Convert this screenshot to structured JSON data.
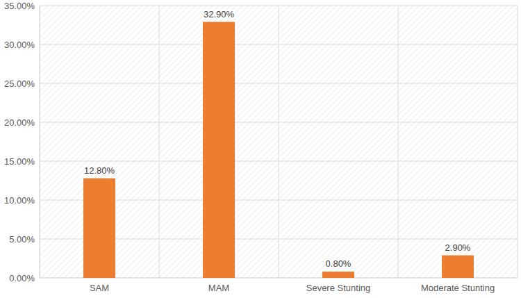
{
  "chart_data": {
    "type": "bar",
    "categories": [
      "SAM",
      "MAM",
      "Severe Stunting",
      "Moderate Stunting"
    ],
    "values": [
      12.8,
      32.9,
      0.8,
      2.9
    ],
    "value_labels": [
      "12.80%",
      "32.90%",
      "0.80%",
      "2.90%"
    ],
    "color": "#ed7d31",
    "ylim": [
      0,
      35
    ],
    "yticks": [
      {
        "value": 0,
        "label": "0.00%"
      },
      {
        "value": 5,
        "label": "5.00%"
      },
      {
        "value": 10,
        "label": "10.00%"
      },
      {
        "value": 15,
        "label": "15.00%"
      },
      {
        "value": 20,
        "label": "20.00%"
      },
      {
        "value": 25,
        "label": "25.00%"
      },
      {
        "value": 30,
        "label": "30.00%"
      },
      {
        "value": 35,
        "label": "35.00%"
      }
    ],
    "grid": true,
    "data_labels": true
  }
}
